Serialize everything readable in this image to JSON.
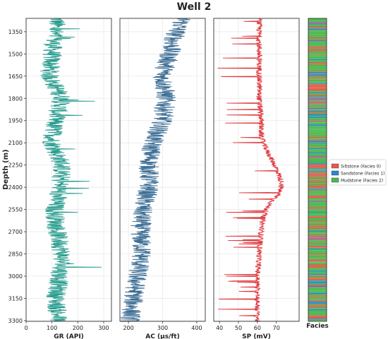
{
  "chart_data": {
    "type": "line",
    "title": "Well 2",
    "ylabel": "Depth (m)",
    "depth_range": [
      3305,
      1260
    ],
    "depth_ticks": [
      1350,
      1500,
      1650,
      1800,
      1950,
      2100,
      2250,
      2400,
      2550,
      2700,
      2850,
      3000,
      3150,
      3300
    ],
    "grid": true,
    "tracks": [
      {
        "name": "GR",
        "xlabel": "GR (API)",
        "xlim": [
          0,
          330
        ],
        "xticks": [
          0,
          100,
          200,
          300
        ],
        "color": "#2a9d8f",
        "profile": [
          [
            1270,
            120
          ],
          [
            1350,
            110
          ],
          [
            1500,
            100
          ],
          [
            1650,
            90
          ],
          [
            1800,
            140
          ],
          [
            1950,
            110
          ],
          [
            2100,
            100
          ],
          [
            2250,
            140
          ],
          [
            2400,
            130
          ],
          [
            2550,
            110
          ],
          [
            2700,
            120
          ],
          [
            2850,
            140
          ],
          [
            3000,
            130
          ],
          [
            3150,
            115
          ],
          [
            3300,
            125
          ]
        ],
        "spread": 38
      },
      {
        "name": "AC",
        "xlabel": "AC (µs/ft)",
        "xlim": [
          175,
          425
        ],
        "xticks": [
          200,
          300,
          400
        ],
        "color": "#3d6e95",
        "profile": [
          [
            1270,
            360
          ],
          [
            1350,
            340
          ],
          [
            1500,
            320
          ],
          [
            1650,
            300
          ],
          [
            1800,
            310
          ],
          [
            1950,
            300
          ],
          [
            2100,
            270
          ],
          [
            2250,
            260
          ],
          [
            2400,
            260
          ],
          [
            2550,
            240
          ],
          [
            2700,
            235
          ],
          [
            2850,
            240
          ],
          [
            3000,
            225
          ],
          [
            3150,
            215
          ],
          [
            3300,
            205
          ]
        ],
        "spread": 30
      },
      {
        "name": "SP",
        "xlabel": "SP (mV)",
        "xlim": [
          37,
          82
        ],
        "xticks": [
          40,
          50,
          60,
          70
        ],
        "color": "#e0383e",
        "profile": [
          [
            1270,
            61
          ],
          [
            1350,
            61
          ],
          [
            1500,
            61
          ],
          [
            1650,
            61
          ],
          [
            1800,
            61
          ],
          [
            1950,
            62
          ],
          [
            2050,
            62
          ],
          [
            2100,
            63
          ],
          [
            2200,
            67
          ],
          [
            2300,
            71
          ],
          [
            2380,
            73
          ],
          [
            2450,
            71
          ],
          [
            2520,
            66
          ],
          [
            2600,
            63
          ],
          [
            2700,
            62
          ],
          [
            2850,
            61
          ],
          [
            3000,
            60
          ],
          [
            3150,
            60
          ],
          [
            3300,
            60
          ]
        ],
        "spread": 1.5
      }
    ],
    "facies": {
      "label": "Facies",
      "legend_position": "right",
      "classes": [
        {
          "name": "Siltstone (Facies 0)",
          "color": "#e55a4e"
        },
        {
          "name": "Sandstone (Facies 1)",
          "color": "#2c86d1"
        },
        {
          "name": "Mudstone (Facies 2)",
          "color": "#4cb84c"
        }
      ]
    }
  }
}
